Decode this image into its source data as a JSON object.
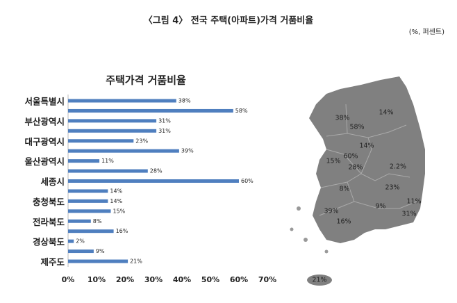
{
  "header": {
    "title": "〈그림 4〉 전국 주택(아파트)가격 거품비율",
    "unit": "(%, 퍼센트)"
  },
  "chart_data": {
    "type": "bar",
    "orientation": "horizontal",
    "title": "주택가격 거품비율",
    "categories": [
      "서울특별시",
      null,
      "부산광역시",
      null,
      "대구광역시",
      null,
      "울산광역시",
      null,
      "세종시",
      null,
      "충청북도",
      null,
      "전라북도",
      null,
      "경상북도",
      null,
      "제주도"
    ],
    "values": [
      38,
      58,
      31,
      31,
      23,
      39,
      11,
      28,
      60,
      14,
      14,
      15,
      8,
      16,
      2,
      9,
      21
    ],
    "value_labels": [
      "38%",
      "58%",
      "31%",
      "31%",
      "23%",
      "39%",
      "11%",
      "28%",
      "60%",
      "14%",
      "14%",
      "15%",
      "8%",
      "16%",
      "2%",
      "9%",
      "21%"
    ],
    "color": "#4f7fbf",
    "xlim": [
      0,
      70
    ],
    "xticks": [
      {
        "value": 0,
        "label": "0%"
      },
      {
        "value": 10,
        "label": "10%"
      },
      {
        "value": 20,
        "label": "20%"
      },
      {
        "value": 30,
        "label": "30%"
      },
      {
        "value": 40,
        "label": "40%"
      },
      {
        "value": 50,
        "label": "50%"
      },
      {
        "value": 60,
        "label": "60%"
      },
      {
        "value": 70,
        "label": "70%"
      }
    ]
  },
  "map": {
    "labels": [
      "38%",
      "14%",
      "58%",
      "14%",
      "60%",
      "15%",
      "28%",
      "2.2%",
      "8%",
      "23%",
      "11%",
      "9%",
      "39%",
      "31%",
      "16%",
      "21%"
    ]
  }
}
